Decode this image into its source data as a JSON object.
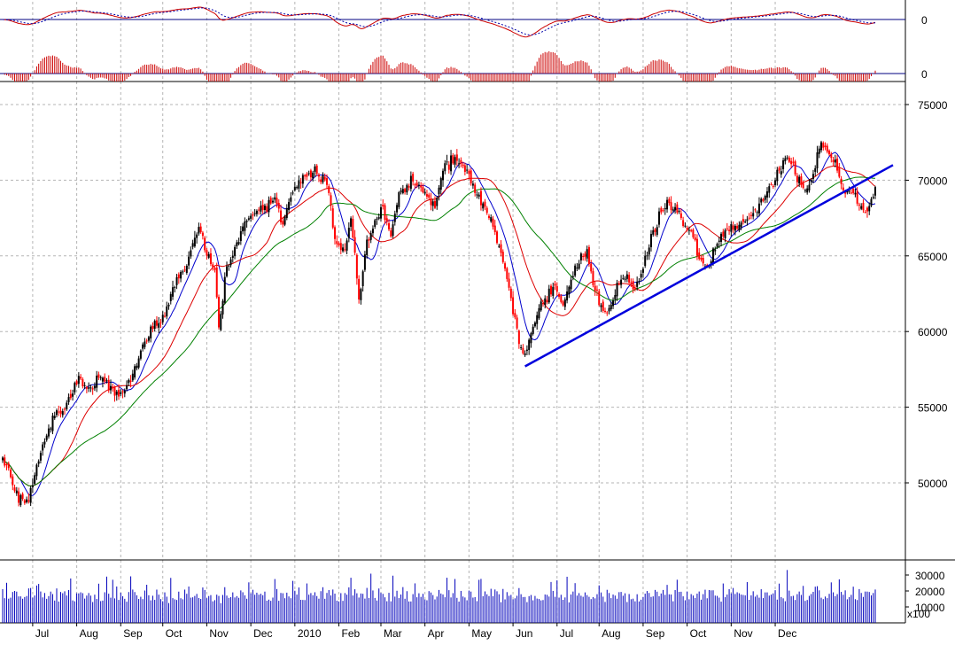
{
  "colors": {
    "background": "#ffffff",
    "up_candle": "#000000",
    "down_candle": "#ff0000",
    "ma_fast": "#0000cc",
    "ma_mid": "#dd0000",
    "ma_slow": "#008000",
    "trendline": "#0000dd",
    "volume": "#0000bb",
    "macd_histogram": "#cc0000",
    "osc_line_1": "#cc0000",
    "osc_line_2": "#0000aa",
    "grid": "#b5b5b5"
  },
  "chart_data": [
    {
      "type": "line",
      "panel": "oscillator",
      "title": "",
      "y_tick_labels": [
        "0"
      ],
      "series": [
        {
          "role": "signal_solid"
        },
        {
          "role": "signal_dashed"
        }
      ]
    },
    {
      "type": "bar",
      "panel": "histogram",
      "title": "",
      "y_tick_labels": [
        "0"
      ]
    },
    {
      "type": "candlestick",
      "panel": "price",
      "title": "",
      "ylim": [
        46000,
        76000
      ],
      "y_ticks": [
        50000,
        55000,
        60000,
        65000,
        70000,
        75000
      ],
      "x_tick_labels": [
        "Jul",
        "Aug",
        "Sep",
        "Oct",
        "Nov",
        "Dec",
        "2010",
        "Feb",
        "Mar",
        "Apr",
        "May",
        "Jun",
        "Jul",
        "Aug",
        "Sep",
        "Oct",
        "Nov",
        "Dec"
      ],
      "close_path": [
        [
          0,
          51500
        ],
        [
          4,
          50300
        ],
        [
          8,
          49000
        ],
        [
          12,
          48500
        ],
        [
          16,
          50500
        ],
        [
          20,
          52500
        ],
        [
          26,
          54500
        ],
        [
          32,
          55300
        ],
        [
          38,
          56800
        ],
        [
          44,
          56200
        ],
        [
          50,
          57300
        ],
        [
          56,
          55700
        ],
        [
          62,
          56300
        ],
        [
          68,
          58300
        ],
        [
          74,
          60200
        ],
        [
          80,
          60900
        ],
        [
          86,
          63200
        ],
        [
          92,
          64500
        ],
        [
          98,
          66900
        ],
        [
          102,
          65200
        ],
        [
          106,
          64100
        ],
        [
          108,
          60200
        ],
        [
          112,
          64300
        ],
        [
          118,
          66200
        ],
        [
          124,
          67700
        ],
        [
          130,
          68100
        ],
        [
          136,
          68900
        ],
        [
          140,
          67000
        ],
        [
          144,
          68900
        ],
        [
          150,
          70300
        ],
        [
          156,
          70700
        ],
        [
          162,
          69900
        ],
        [
          166,
          66100
        ],
        [
          170,
          65200
        ],
        [
          174,
          67400
        ],
        [
          178,
          62300
        ],
        [
          182,
          66100
        ],
        [
          186,
          67200
        ],
        [
          190,
          68000
        ],
        [
          194,
          66500
        ],
        [
          198,
          69000
        ],
        [
          204,
          70100
        ],
        [
          210,
          69300
        ],
        [
          216,
          68300
        ],
        [
          220,
          70700
        ],
        [
          226,
          71500
        ],
        [
          232,
          70600
        ],
        [
          236,
          69100
        ],
        [
          240,
          68300
        ],
        [
          244,
          67400
        ],
        [
          248,
          65400
        ],
        [
          252,
          63400
        ],
        [
          256,
          61000
        ],
        [
          260,
          58300
        ],
        [
          264,
          59700
        ],
        [
          268,
          61600
        ],
        [
          272,
          62300
        ],
        [
          276,
          62700
        ],
        [
          280,
          61800
        ],
        [
          284,
          63300
        ],
        [
          288,
          64800
        ],
        [
          292,
          65400
        ],
        [
          296,
          62800
        ],
        [
          300,
          61300
        ],
        [
          304,
          61800
        ],
        [
          308,
          63200
        ],
        [
          312,
          63500
        ],
        [
          316,
          62800
        ],
        [
          320,
          64100
        ],
        [
          324,
          66300
        ],
        [
          328,
          67600
        ],
        [
          332,
          68500
        ],
        [
          336,
          68000
        ],
        [
          340,
          67200
        ],
        [
          344,
          66600
        ],
        [
          348,
          64900
        ],
        [
          352,
          64300
        ],
        [
          356,
          65500
        ],
        [
          360,
          66600
        ],
        [
          364,
          67100
        ],
        [
          368,
          66800
        ],
        [
          372,
          67300
        ],
        [
          376,
          68000
        ],
        [
          380,
          68900
        ],
        [
          384,
          69700
        ],
        [
          388,
          70700
        ],
        [
          392,
          71700
        ],
        [
          396,
          70600
        ],
        [
          400,
          69500
        ],
        [
          404,
          69900
        ],
        [
          408,
          72200
        ],
        [
          412,
          71900
        ],
        [
          416,
          71200
        ],
        [
          420,
          69300
        ],
        [
          424,
          69600
        ],
        [
          428,
          68200
        ],
        [
          432,
          67700
        ],
        [
          436,
          69500
        ]
      ],
      "n_days": 437,
      "overlays": [
        {
          "kind": "moving_average",
          "color_key": "ma_fast",
          "period": 10
        },
        {
          "kind": "moving_average",
          "color_key": "ma_mid",
          "period": 26
        },
        {
          "kind": "moving_average",
          "color_key": "ma_slow",
          "period": 52
        }
      ],
      "trendline": {
        "from": {
          "day": 261,
          "value": 57700
        },
        "to": {
          "day": 437,
          "value": 71000
        }
      }
    },
    {
      "type": "bar",
      "panel": "volume",
      "title": "",
      "y_tick_labels": [
        "30000",
        "20000",
        "10000"
      ],
      "unit_label": "x100",
      "ylim": [
        0,
        36000
      ]
    }
  ]
}
